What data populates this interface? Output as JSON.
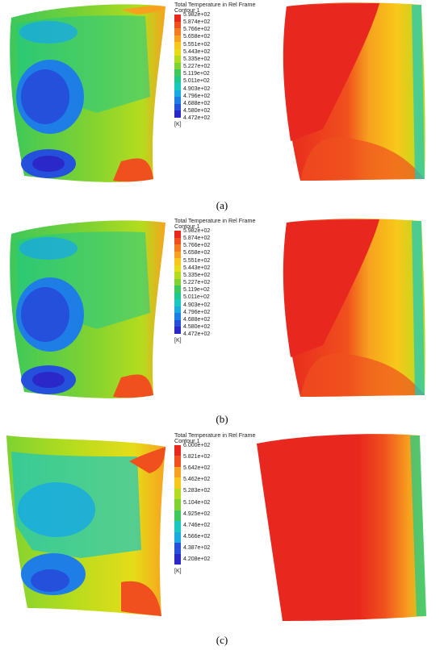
{
  "figure": {
    "panels": [
      {
        "caption": "(a)",
        "legend": {
          "title": "Total Temperature in Rel Frame",
          "subtitle": "Contour 1",
          "unit": "[K]",
          "ticks": [
            "5.982e+02",
            "5.874e+02",
            "5.766e+02",
            "5.658e+02",
            "5.551e+02",
            "5.443e+02",
            "5.335e+02",
            "5.227e+02",
            "5.119e+02",
            "5.011e+02",
            "4.903e+02",
            "4.796e+02",
            "4.688e+02",
            "4.580e+02",
            "4.472e+02"
          ]
        }
      },
      {
        "caption": "(b)",
        "legend": {
          "title": "Total Temperature in Rel Frame",
          "subtitle": "Contour 1",
          "unit": "[K]",
          "ticks": [
            "5.982e+02",
            "5.874e+02",
            "5.766e+02",
            "5.658e+02",
            "5.551e+02",
            "5.443e+02",
            "5.335e+02",
            "5.227e+02",
            "5.119e+02",
            "5.011e+02",
            "4.903e+02",
            "4.796e+02",
            "4.688e+02",
            "4.580e+02",
            "4.472e+02"
          ]
        }
      },
      {
        "caption": "(c)",
        "legend": {
          "title": "Total Temperature in Rel Frame",
          "subtitle": "Contour 1",
          "unit": "[K]",
          "ticks": [
            "6.000e+02",
            "5.821e+02",
            "5.642e+02",
            "5.462e+02",
            "5.283e+02",
            "5.104e+02",
            "4.925e+02",
            "4.746e+02",
            "4.566e+02",
            "4.387e+02",
            "4.208e+02"
          ]
        }
      }
    ],
    "colormap": [
      "#e8281e",
      "#f0501e",
      "#f47c20",
      "#f7a21e",
      "#f7c81a",
      "#e6dc18",
      "#b4dc1e",
      "#7fd232",
      "#3cc85a",
      "#1ec88c",
      "#18c8c0",
      "#1aaae0",
      "#1f7ee6",
      "#2450dc",
      "#2a28c8"
    ]
  }
}
